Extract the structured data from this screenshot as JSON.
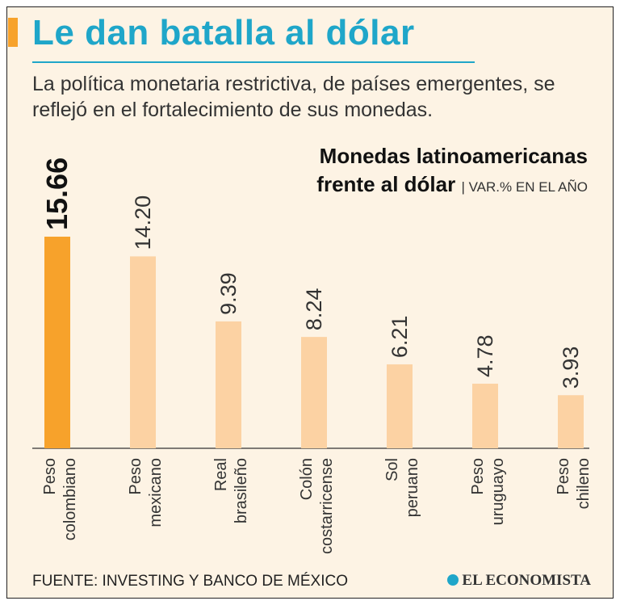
{
  "header": {
    "title": "Le dan batalla al dólar",
    "subtitle": "La política monetaria restrictiva, de países emergentes, se reflejó en el fortalecimiento de sus monedas."
  },
  "chart_data": {
    "type": "bar",
    "title": "Monedas latinoamericanas frente al dólar",
    "title_line1": "Monedas latinoamericanas",
    "title_line2": "frente al dólar",
    "unit": "VAR.% EN EL AÑO",
    "categories": [
      [
        "Peso",
        "colombiano"
      ],
      [
        "Peso",
        "mexicano"
      ],
      [
        "Real",
        "brasileño"
      ],
      [
        "Colón",
        "costarricense"
      ],
      [
        "Sol",
        "peruano"
      ],
      [
        "Peso",
        "uruguayo"
      ],
      [
        "Peso",
        "chileno"
      ]
    ],
    "values": [
      15.66,
      14.2,
      9.39,
      8.24,
      6.21,
      4.78,
      3.93
    ],
    "value_labels": [
      "15.66",
      "14.20",
      "9.39",
      "8.24",
      "6.21",
      "4.78",
      "3.93"
    ],
    "highlight_index": 0,
    "colors": {
      "highlight": "#f7a22b",
      "bar": "#fcd2a3",
      "axis": "#333333",
      "label": "#333333",
      "highlight_label": "#111111"
    },
    "ylim": [
      0,
      15.66
    ]
  },
  "footer": {
    "source": "FUENTE: INVESTING Y BANCO DE MÉXICO",
    "logo": "EL ECONOMISTA"
  }
}
